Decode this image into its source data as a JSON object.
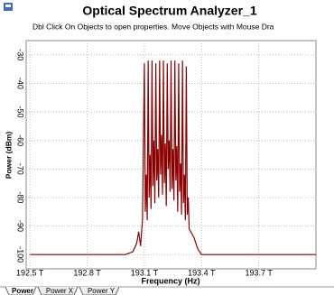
{
  "chart_data": {
    "type": "line",
    "title": "Optical Spectrum Analyzer_1",
    "subtitle": "Dbl Click On Objects to open properties.  Move Objects with Mouse Dra",
    "x_label": "Frequency (Hz)",
    "y_label": "Power (dBm)",
    "x": [
      192500000000000,
      193000000000000,
      193040000000000,
      193060000000000,
      193070000000000,
      193080000000000,
      193090000000000,
      193100000000000,
      193105000000000,
      193110000000000,
      193115000000000,
      193120000000000,
      193125000000000,
      193130000000000,
      193135000000000,
      193140000000000,
      193145000000000,
      193150000000000,
      193155000000000,
      193160000000000,
      193165000000000,
      193170000000000,
      193175000000000,
      193180000000000,
      193185000000000,
      193190000000000,
      193195000000000,
      193200000000000,
      193205000000000,
      193210000000000,
      193215000000000,
      193220000000000,
      193225000000000,
      193230000000000,
      193235000000000,
      193240000000000,
      193245000000000,
      193250000000000,
      193255000000000,
      193260000000000,
      193265000000000,
      193270000000000,
      193275000000000,
      193280000000000,
      193285000000000,
      193290000000000,
      193295000000000,
      193300000000000,
      193305000000000,
      193310000000000,
      193315000000000,
      193320000000000,
      193325000000000,
      193330000000000,
      193335000000000,
      193360000000000,
      193380000000000,
      193400000000000,
      194000000000000
    ],
    "series": [
      {
        "color": "#8b0000",
        "values": [
          -100,
          -100,
          -99,
          -96,
          -92,
          -97,
          -88,
          -33,
          -85,
          -72,
          -88,
          -32,
          -80,
          -65,
          -84,
          -32,
          -76,
          -60,
          -82,
          -33,
          -74,
          -63,
          -80,
          -32,
          -72,
          -58,
          -79,
          -32,
          -75,
          -61,
          -83,
          -33,
          -70,
          -60,
          -78,
          -32,
          -77,
          -63,
          -81,
          -32,
          -74,
          -62,
          -85,
          -33,
          -78,
          -68,
          -86,
          -32,
          -82,
          -72,
          -88,
          -34,
          -86,
          -80,
          -91,
          -94,
          -98,
          -100,
          -100
        ]
      }
    ],
    "xlim": [
      192480000000000,
      194000000000000
    ],
    "ylim": [
      -105,
      -25
    ],
    "xticks": [
      {
        "value": 192500000000000,
        "label": "192.5 T"
      },
      {
        "value": 192800000000000,
        "label": "192.8 T"
      },
      {
        "value": 193100000000000,
        "label": "193.1 T"
      },
      {
        "value": 193400000000000,
        "label": "193.4 T"
      },
      {
        "value": 193700000000000,
        "label": "193.7 T"
      }
    ],
    "yticks": [
      -30,
      -40,
      -50,
      -60,
      -70,
      -80,
      -90,
      -100
    ],
    "grid": true
  },
  "tabs": [
    "Power",
    "Power X",
    "Power Y"
  ]
}
